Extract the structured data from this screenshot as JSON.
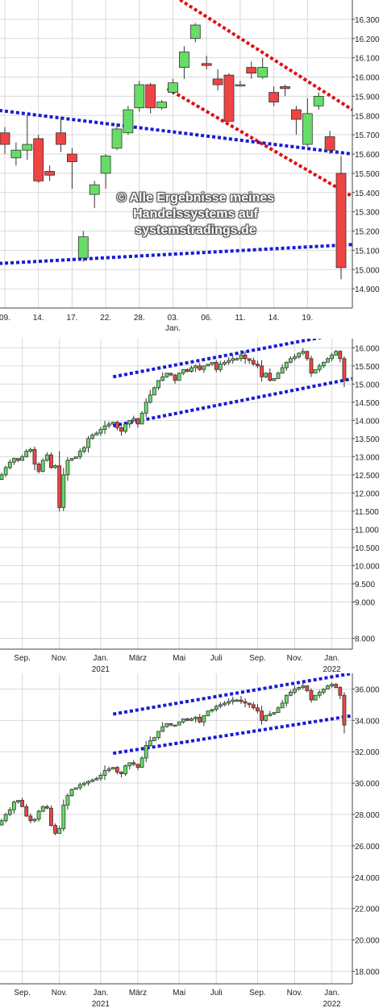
{
  "watermark": {
    "line1": "© Alle Ergebnisse meines",
    "line2": "Handelssystems auf",
    "line3": "systemstradings.de"
  },
  "colors": {
    "up": "#66dd66",
    "down": "#ee4444",
    "channel": "#1a1ad6",
    "resistance": "#e01010",
    "grid": "#d9d9d9"
  },
  "chart_data": [
    {
      "type": "candlestick",
      "title": "",
      "ylim": [
        14800,
        16400
      ],
      "y_ticks": [
        "14.900",
        "15.000",
        "15.100",
        "15.200",
        "15.300",
        "15.400",
        "15.500",
        "15.600",
        "15.700",
        "15.800",
        "15.900",
        "16.000",
        "16.100",
        "16.200",
        "16.300"
      ],
      "y_tick_values": [
        14900,
        15000,
        15100,
        15200,
        15300,
        15400,
        15500,
        15600,
        15700,
        15800,
        15900,
        16000,
        16100,
        16200,
        16300
      ],
      "x_ticks": [
        {
          "label": "09.",
          "sub": "",
          "i": 0
        },
        {
          "label": "14.",
          "sub": "",
          "i": 3
        },
        {
          "label": "17.",
          "sub": "",
          "i": 6
        },
        {
          "label": "22.",
          "sub": "",
          "i": 9
        },
        {
          "label": "28.",
          "sub": "",
          "i": 12
        },
        {
          "label": "03.",
          "sub": "Jan.",
          "i": 15
        },
        {
          "label": "06.",
          "sub": "",
          "i": 18
        },
        {
          "label": "11.",
          "sub": "",
          "i": 21
        },
        {
          "label": "14.",
          "sub": "",
          "i": 24
        },
        {
          "label": "19.",
          "sub": "",
          "i": 27
        }
      ],
      "candles": [
        {
          "o": 15710,
          "h": 15740,
          "l": 15600,
          "c": 15650
        },
        {
          "o": 15580,
          "h": 15660,
          "l": 15540,
          "c": 15620
        },
        {
          "o": 15620,
          "h": 15800,
          "l": 15570,
          "c": 15650
        },
        {
          "o": 15680,
          "h": 15700,
          "l": 15450,
          "c": 15460
        },
        {
          "o": 15510,
          "h": 15540,
          "l": 15460,
          "c": 15490
        },
        {
          "o": 15710,
          "h": 15790,
          "l": 15610,
          "c": 15650
        },
        {
          "o": 15600,
          "h": 15630,
          "l": 15420,
          "c": 15560
        },
        {
          "o": 15060,
          "h": 15200,
          "l": 15040,
          "c": 15170
        },
        {
          "o": 15390,
          "h": 15460,
          "l": 15320,
          "c": 15440
        },
        {
          "o": 15500,
          "h": 15600,
          "l": 15420,
          "c": 15590
        },
        {
          "o": 15630,
          "h": 15760,
          "l": 15620,
          "c": 15730
        },
        {
          "o": 15710,
          "h": 15850,
          "l": 15700,
          "c": 15830
        },
        {
          "o": 15840,
          "h": 15980,
          "l": 15820,
          "c": 15960
        },
        {
          "o": 15960,
          "h": 15970,
          "l": 15810,
          "c": 15840
        },
        {
          "o": 15840,
          "h": 15880,
          "l": 15830,
          "c": 15870
        },
        {
          "o": 15920,
          "h": 15990,
          "l": 15910,
          "c": 15970
        },
        {
          "o": 16050,
          "h": 16160,
          "l": 15990,
          "c": 16130
        },
        {
          "o": 16200,
          "h": 16280,
          "l": 16180,
          "c": 16270
        },
        {
          "o": 16070,
          "h": 16110,
          "l": 16040,
          "c": 16060
        },
        {
          "o": 15990,
          "h": 16040,
          "l": 15930,
          "c": 15960
        },
        {
          "o": 16010,
          "h": 16020,
          "l": 15780,
          "c": 15770
        },
        {
          "o": 15960,
          "h": 15980,
          "l": 15950,
          "c": 15960
        },
        {
          "o": 16050,
          "h": 16080,
          "l": 15990,
          "c": 16020
        },
        {
          "o": 16000,
          "h": 16100,
          "l": 15990,
          "c": 16050
        },
        {
          "o": 15920,
          "h": 15950,
          "l": 15850,
          "c": 15870
        },
        {
          "o": 15950,
          "h": 15960,
          "l": 15900,
          "c": 15940
        },
        {
          "o": 15830,
          "h": 15850,
          "l": 15700,
          "c": 15780
        },
        {
          "o": 15650,
          "h": 15890,
          "l": 15640,
          "c": 15810
        },
        {
          "o": 15850,
          "h": 15920,
          "l": 15830,
          "c": 15900
        },
        {
          "o": 15690,
          "h": 15720,
          "l": 15600,
          "c": 15620
        },
        {
          "o": 15500,
          "h": 15590,
          "l": 14950,
          "c": 15010
        }
      ],
      "lines": [
        {
          "kind": "channel",
          "i1": -1,
          "y1": 15830,
          "i2": 31,
          "y2": 15600
        },
        {
          "kind": "channel",
          "i1": -1,
          "y1": 15030,
          "i2": 31,
          "y2": 15130
        },
        {
          "kind": "resistance",
          "i1": 13.5,
          "y1": 16480,
          "i2": 31,
          "y2": 15830
        },
        {
          "kind": "resistance",
          "i1": 14.5,
          "y1": 15940,
          "i2": 31,
          "y2": 15380
        }
      ]
    },
    {
      "type": "candlestick",
      "title": "",
      "ylim": [
        7700,
        16250
      ],
      "y_ticks": [
        "8.000",
        "9.000",
        "9.500",
        "10.000",
        "10.500",
        "11.000",
        "11.500",
        "12.000",
        "12.500",
        "13.000",
        "13.500",
        "14.000",
        "14.500",
        "15.000",
        "15.500",
        "16.000"
      ],
      "y_tick_values": [
        8000,
        9000,
        9500,
        10000,
        10500,
        11000,
        11500,
        12000,
        12500,
        13000,
        13500,
        14000,
        14500,
        15000,
        15500,
        16000
      ],
      "x_ticks": [
        {
          "label": "Sep.",
          "sub": "",
          "i": 5
        },
        {
          "label": "Nov.",
          "sub": "",
          "i": 14
        },
        {
          "label": "Jan.",
          "sub": "2021",
          "i": 24
        },
        {
          "label": "März",
          "sub": "",
          "i": 33
        },
        {
          "label": "Mai",
          "sub": "",
          "i": 43
        },
        {
          "label": "Juli",
          "sub": "",
          "i": 52
        },
        {
          "label": "Sep.",
          "sub": "",
          "i": 62
        },
        {
          "label": "Nov.",
          "sub": "",
          "i": 71
        },
        {
          "label": "Jan.",
          "sub": "2022",
          "i": 80
        }
      ],
      "closes": [
        12500,
        12700,
        12850,
        12950,
        12900,
        13000,
        13150,
        13200,
        12800,
        12600,
        12900,
        13050,
        12700,
        12750,
        11600,
        12500,
        12900,
        12950,
        13000,
        13150,
        13250,
        13500,
        13600,
        13650,
        13750,
        13850,
        13900,
        13950,
        13800,
        13700,
        13900,
        14000,
        14050,
        13900,
        14200,
        14500,
        14700,
        14900,
        15100,
        15200,
        15300,
        15250,
        15100,
        15300,
        15400,
        15350,
        15450,
        15500,
        15400,
        15500,
        15550,
        15600,
        15400,
        15550,
        15600,
        15650,
        15700,
        15700,
        15800,
        15700,
        15650,
        15550,
        15500,
        15200,
        15300,
        15100,
        15150,
        15300,
        15450,
        15600,
        15700,
        15750,
        15850,
        15900,
        15700,
        15300,
        15400,
        15500,
        15600,
        15700,
        15800,
        15900,
        15700,
        15100
      ],
      "lines": [
        {
          "kind": "channel",
          "i1": 27,
          "y1": 15200,
          "i2": 85,
          "y2": 16450
        },
        {
          "kind": "channel",
          "i1": 27,
          "y1": 13850,
          "i2": 85,
          "y2": 15150
        }
      ]
    },
    {
      "type": "candlestick",
      "title": "",
      "ylim": [
        17200,
        37000
      ],
      "y_ticks": [
        "18.000",
        "20.000",
        "22.000",
        "24.000",
        "26.000",
        "28.000",
        "30.000",
        "32.000",
        "34.000",
        "36.000"
      ],
      "y_tick_values": [
        18000,
        20000,
        22000,
        24000,
        26000,
        28000,
        30000,
        32000,
        34000,
        36000
      ],
      "x_ticks": [
        {
          "label": "Sep.",
          "sub": "",
          "i": 5
        },
        {
          "label": "Nov.",
          "sub": "",
          "i": 14
        },
        {
          "label": "Jan.",
          "sub": "2021",
          "i": 24
        },
        {
          "label": "März",
          "sub": "",
          "i": 33
        },
        {
          "label": "Mai",
          "sub": "",
          "i": 43
        },
        {
          "label": "Juli",
          "sub": "",
          "i": 52
        },
        {
          "label": "Sep.",
          "sub": "",
          "i": 62
        },
        {
          "label": "Nov.",
          "sub": "",
          "i": 71
        },
        {
          "label": "Jan.",
          "sub": "2022",
          "i": 80
        }
      ],
      "closes": [
        27600,
        28000,
        28300,
        28800,
        28900,
        28500,
        27900,
        27600,
        27700,
        28200,
        28500,
        28400,
        27300,
        26800,
        27100,
        28600,
        29200,
        29600,
        29700,
        29900,
        30000,
        30100,
        30200,
        30300,
        30500,
        30800,
        30900,
        31000,
        30700,
        30600,
        31100,
        31300,
        31200,
        31000,
        31600,
        32400,
        32700,
        32900,
        33300,
        33600,
        33800,
        33700,
        33700,
        33900,
        34100,
        34000,
        34100,
        34200,
        33900,
        34300,
        34600,
        34700,
        34900,
        35000,
        35100,
        35200,
        35300,
        35300,
        35200,
        35100,
        35000,
        34800,
        34600,
        34000,
        34300,
        34400,
        34500,
        34800,
        35100,
        35600,
        35800,
        36000,
        36100,
        36200,
        35900,
        35300,
        35600,
        35800,
        36000,
        36200,
        36300,
        36100,
        35600,
        33700
      ],
      "lines": [
        {
          "kind": "channel",
          "i1": 27,
          "y1": 34400,
          "i2": 85,
          "y2": 37000
        },
        {
          "kind": "channel",
          "i1": 27,
          "y1": 31900,
          "i2": 85,
          "y2": 34300
        }
      ]
    }
  ]
}
